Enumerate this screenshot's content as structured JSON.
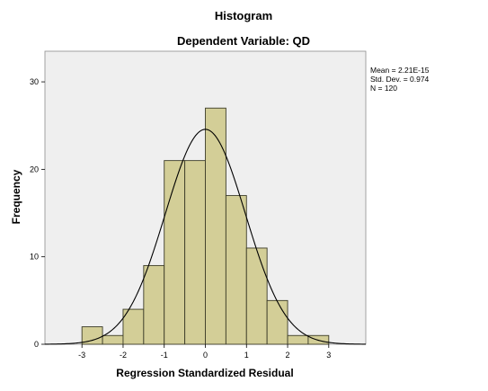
{
  "chart_data": {
    "type": "bar",
    "title": "Histogram",
    "subtitle": "Dependent Variable: QD",
    "xlabel": "Regression Standardized Residual",
    "ylabel": "Frequency",
    "xlim": [
      -3.9,
      3.9
    ],
    "ylim": [
      0,
      33.5
    ],
    "xticks": [
      -3,
      -2,
      -1,
      0,
      1,
      2,
      3
    ],
    "yticks": [
      0,
      10,
      20,
      30
    ],
    "bin_width": 0.5,
    "bins": [
      {
        "x0": -3.0,
        "x1": -2.5,
        "value": 2
      },
      {
        "x0": -2.5,
        "x1": -2.0,
        "value": 1
      },
      {
        "x0": -2.0,
        "x1": -1.5,
        "value": 4
      },
      {
        "x0": -1.5,
        "x1": -1.0,
        "value": 9
      },
      {
        "x0": -1.0,
        "x1": -0.5,
        "value": 21
      },
      {
        "x0": -0.5,
        "x1": 0.0,
        "value": 21
      },
      {
        "x0": 0.0,
        "x1": 0.5,
        "value": 27
      },
      {
        "x0": 0.5,
        "x1": 1.0,
        "value": 17
      },
      {
        "x0": 1.0,
        "x1": 1.5,
        "value": 11
      },
      {
        "x0": 1.5,
        "x1": 2.0,
        "value": 5
      },
      {
        "x0": 2.0,
        "x1": 2.5,
        "value": 1
      },
      {
        "x0": 2.5,
        "x1": 3.0,
        "value": 1
      }
    ],
    "normal_curve": {
      "mean": 0,
      "std": 0.974,
      "n": 120
    },
    "stats": {
      "mean": "Mean = 2.21E-15",
      "std_dev": "Std. Dev. = 0.974",
      "n": "N = 120"
    },
    "colors": {
      "plot_background": "#efefef",
      "bar_fill": "#d3ce97",
      "bar_stroke": "#3c3c28",
      "curve": "#000000"
    },
    "grid": false,
    "legend": "none"
  }
}
